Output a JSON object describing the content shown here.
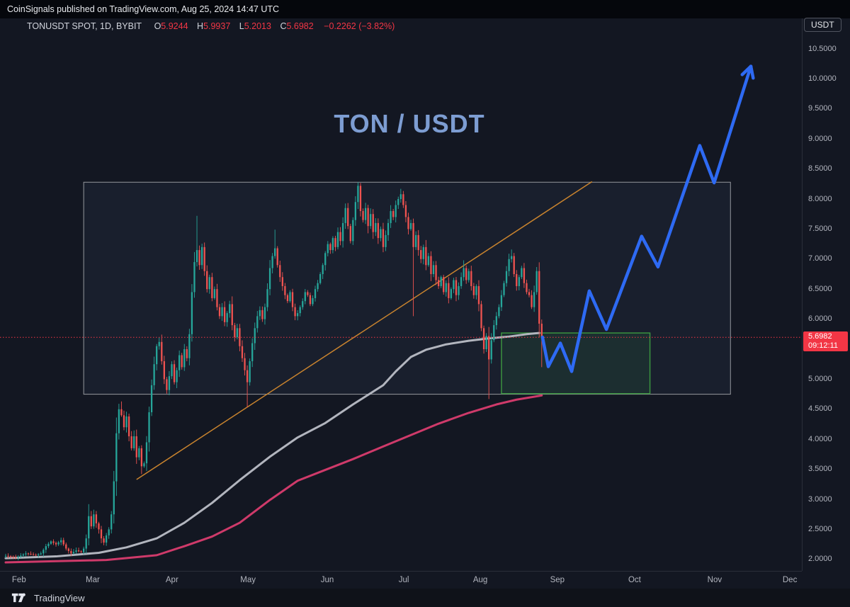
{
  "header": {
    "publisher_note": "CoinSignals published on TradingView.com, Aug 25, 2024 14:47 UTC",
    "currency_button": "USDT"
  },
  "legend": {
    "symbol_title": "TONUSDT SPOT, 1D, BYBIT",
    "ohlc": [
      {
        "k": "O",
        "v": "5.9244"
      },
      {
        "k": "H",
        "v": "5.9937"
      },
      {
        "k": "L",
        "v": "5.2013"
      },
      {
        "k": "C",
        "v": "5.6982"
      }
    ],
    "change_text": "−0.2262 (−3.82%)"
  },
  "watermark_title": "TON / USDT",
  "price_label": {
    "price": "5.6982",
    "countdown": "09:12:11"
  },
  "footer": {
    "brand": "TradingView"
  },
  "colors": {
    "background": "#131722",
    "up_candle": "#26a69a",
    "down_candle": "#ef5350",
    "ma_fast": "#b2b5be",
    "ma_slow": "#cf3a6a",
    "trendline": "#c8832e",
    "projection": "#2e6af3",
    "price_line": "#f23645",
    "white_box_stroke": "rgba(255,255,255,0.55)",
    "white_box_fill": "rgba(135,190,255,0.05)",
    "green_box_stroke": "#3c9a40",
    "green_box_fill": "rgba(60,160,70,0.12)",
    "title_blue": "#7d9dd2",
    "axis_text": "#b2b5be"
  },
  "chart_data": {
    "type": "candlestick",
    "symbol": "TONUSDT",
    "exchange": "BYBIT",
    "interval": "1D",
    "title": "TON / USDT",
    "last": {
      "open": 5.9244,
      "high": 5.9937,
      "low": 5.2013,
      "close": 5.6982,
      "change": -0.2262,
      "change_pct": -3.82
    },
    "y_axis": {
      "min": 1.8,
      "max": 10.5,
      "ticks": [
        10.5,
        10.0,
        9.5,
        9.0,
        8.5,
        8.0,
        7.5,
        7.0,
        6.5,
        6.0,
        5.5,
        5.0,
        4.5,
        4.0,
        3.5,
        3.0,
        2.5,
        2.0
      ],
      "grid": false
    },
    "x_axis": {
      "months": [
        "Feb",
        "Mar",
        "Apr",
        "May",
        "Jun",
        "Jul",
        "Aug",
        "Sep",
        "Oct",
        "Nov",
        "Dec"
      ],
      "month_day_index": [
        5.3,
        34.6,
        66.1,
        96.3,
        127.8,
        158.2,
        188.6,
        219.2,
        249.9,
        281.7,
        311.6
      ]
    },
    "price_line_value": 5.6982,
    "price_path_anchors": [
      [
        0,
        2.06
      ],
      [
        4,
        2.03
      ],
      [
        8,
        2.1
      ],
      [
        12,
        2.07
      ],
      [
        14,
        2.1
      ],
      [
        16,
        2.22
      ],
      [
        18,
        2.3
      ],
      [
        20,
        2.25
      ],
      [
        22,
        2.32
      ],
      [
        24,
        2.18
      ],
      [
        26,
        2.1
      ],
      [
        28,
        2.15
      ],
      [
        30,
        2.12
      ],
      [
        31,
        2.18
      ],
      [
        32,
        2.35
      ],
      [
        33,
        2.72
      ],
      [
        34,
        2.55
      ],
      [
        35,
        2.75
      ],
      [
        36,
        2.6
      ],
      [
        37,
        2.5
      ],
      [
        38,
        2.35
      ],
      [
        39,
        2.28
      ],
      [
        40,
        2.4
      ],
      [
        41,
        2.5
      ],
      [
        42,
        2.75
      ],
      [
        43,
        3.3
      ],
      [
        44,
        4.1
      ],
      [
        45,
        4.5
      ],
      [
        46,
        4.4
      ],
      [
        47,
        4.2
      ],
      [
        48,
        4.38
      ],
      [
        49,
        4.05
      ],
      [
        50,
        3.85
      ],
      [
        51,
        4.05
      ],
      [
        52,
        3.7
      ],
      [
        53,
        3.85
      ],
      [
        54,
        3.55
      ],
      [
        55,
        3.6
      ],
      [
        56,
        3.95
      ],
      [
        57,
        4.45
      ],
      [
        58,
        4.9
      ],
      [
        59,
        5.25
      ],
      [
        60,
        5.55
      ],
      [
        61,
        5.62
      ],
      [
        62,
        5.3
      ],
      [
        63,
        5.0
      ],
      [
        64,
        4.82
      ],
      [
        65,
        5.05
      ],
      [
        66,
        5.25
      ],
      [
        67,
        4.95
      ],
      [
        68,
        5.15
      ],
      [
        69,
        5.4
      ],
      [
        70,
        5.2
      ],
      [
        71,
        5.5
      ],
      [
        72,
        5.35
      ],
      [
        73,
        5.75
      ],
      [
        74,
        6.45
      ],
      [
        75,
        6.95
      ],
      [
        76,
        7.15
      ],
      [
        77,
        6.9
      ],
      [
        78,
        7.2
      ],
      [
        79,
        6.8
      ],
      [
        80,
        6.5
      ],
      [
        81,
        6.7
      ],
      [
        82,
        6.35
      ],
      [
        83,
        6.5
      ],
      [
        84,
        6.2
      ],
      [
        85,
        6.05
      ],
      [
        86,
        6.2
      ],
      [
        87,
        5.95
      ],
      [
        88,
        6.1
      ],
      [
        89,
        6.25
      ],
      [
        90,
        5.9
      ],
      [
        91,
        5.7
      ],
      [
        92,
        5.85
      ],
      [
        93,
        5.55
      ],
      [
        94,
        5.35
      ],
      [
        95,
        5.15
      ],
      [
        96,
        4.95
      ],
      [
        97,
        5.3
      ],
      [
        98,
        5.6
      ],
      [
        99,
        5.85
      ],
      [
        100,
        6.05
      ],
      [
        101,
        6.15
      ],
      [
        102,
        6.0
      ],
      [
        103,
        6.2
      ],
      [
        104,
        6.5
      ],
      [
        105,
        6.85
      ],
      [
        106,
        7.05
      ],
      [
        107,
        7.18
      ],
      [
        108,
        6.9
      ],
      [
        109,
        6.7
      ],
      [
        110,
        6.55
      ],
      [
        111,
        6.4
      ],
      [
        112,
        6.3
      ],
      [
        113,
        6.45
      ],
      [
        114,
        6.2
      ],
      [
        115,
        6.05
      ],
      [
        116,
        6.1
      ],
      [
        117,
        6.2
      ],
      [
        118,
        6.3
      ],
      [
        119,
        6.45
      ],
      [
        120,
        6.4
      ],
      [
        121,
        6.25
      ],
      [
        122,
        6.35
      ],
      [
        123,
        6.5
      ],
      [
        124,
        6.6
      ],
      [
        125,
        6.75
      ],
      [
        126,
        6.9
      ],
      [
        127,
        7.1
      ],
      [
        128,
        7.25
      ],
      [
        129,
        7.15
      ],
      [
        130,
        7.35
      ],
      [
        131,
        7.2
      ],
      [
        132,
        7.45
      ],
      [
        133,
        7.3
      ],
      [
        134,
        7.6
      ],
      [
        135,
        7.85
      ],
      [
        136,
        7.55
      ],
      [
        137,
        7.3
      ],
      [
        138,
        7.65
      ],
      [
        139,
        7.95
      ],
      [
        140,
        8.22
      ],
      [
        141,
        7.8
      ],
      [
        142,
        7.65
      ],
      [
        143,
        7.85
      ],
      [
        144,
        7.55
      ],
      [
        145,
        7.75
      ],
      [
        146,
        7.45
      ],
      [
        147,
        7.6
      ],
      [
        148,
        7.35
      ],
      [
        149,
        7.5
      ],
      [
        150,
        7.2
      ],
      [
        151,
        7.4
      ],
      [
        152,
        7.6
      ],
      [
        153,
        7.8
      ],
      [
        154,
        7.7
      ],
      [
        155,
        7.9
      ],
      [
        156,
        8.0
      ],
      [
        157,
        8.08
      ],
      [
        158,
        7.9
      ],
      [
        159,
        7.7
      ],
      [
        160,
        7.5
      ],
      [
        161,
        7.6
      ],
      [
        162,
        7.2
      ],
      [
        163,
        7.4
      ],
      [
        164,
        7.15
      ],
      [
        165,
        7.0
      ],
      [
        166,
        7.2
      ],
      [
        167,
        6.9
      ],
      [
        168,
        7.05
      ],
      [
        169,
        6.75
      ],
      [
        170,
        6.9
      ],
      [
        171,
        6.65
      ],
      [
        172,
        6.55
      ],
      [
        173,
        6.7
      ],
      [
        174,
        6.45
      ],
      [
        175,
        6.6
      ],
      [
        176,
        6.35
      ],
      [
        177,
        6.5
      ],
      [
        178,
        6.65
      ],
      [
        179,
        6.4
      ],
      [
        180,
        6.55
      ],
      [
        181,
        6.7
      ],
      [
        182,
        6.85
      ],
      [
        183,
        6.65
      ],
      [
        184,
        6.8
      ],
      [
        185,
        6.55
      ],
      [
        186,
        6.4
      ],
      [
        187,
        6.55
      ],
      [
        188,
        6.25
      ],
      [
        189,
        5.85
      ],
      [
        190,
        5.5
      ],
      [
        191,
        5.72
      ],
      [
        192,
        5.33
      ],
      [
        193,
        5.65
      ],
      [
        194,
        5.9
      ],
      [
        195,
        6.05
      ],
      [
        196,
        6.2
      ],
      [
        197,
        6.4
      ],
      [
        198,
        6.6
      ],
      [
        199,
        6.8
      ],
      [
        200,
        7.0
      ],
      [
        201,
        7.05
      ],
      [
        202,
        6.75
      ],
      [
        203,
        6.55
      ],
      [
        204,
        6.7
      ],
      [
        205,
        6.85
      ],
      [
        206,
        6.6
      ],
      [
        207,
        6.45
      ],
      [
        208,
        6.4
      ],
      [
        209,
        6.2
      ],
      [
        210,
        6.45
      ],
      [
        211,
        6.8
      ],
      [
        212,
        5.9244
      ],
      [
        213,
        5.6982
      ]
    ],
    "special_wicks": {
      "33": {
        "h": 2.92
      },
      "46": {
        "h": 4.63
      },
      "54": {
        "l": 3.42
      },
      "61": {
        "h": 5.7
      },
      "64": {
        "l": 4.76
      },
      "76": {
        "h": 7.72
      },
      "96": {
        "l": 4.53
      },
      "107": {
        "h": 7.49
      },
      "116": {
        "l": 5.98
      },
      "140": {
        "h": 8.28
      },
      "157": {
        "h": 8.17
      },
      "162": {
        "l": 6.05
      },
      "182": {
        "h": 6.98
      },
      "192": {
        "l": 4.67
      },
      "201": {
        "h": 7.16
      },
      "213": {
        "h": 5.9937,
        "l": 5.2013
      }
    },
    "overlays": {
      "ma_fast_points": [
        [
          0,
          2.02
        ],
        [
          20,
          2.05
        ],
        [
          37,
          2.11
        ],
        [
          48,
          2.2
        ],
        [
          60,
          2.35
        ],
        [
          71,
          2.61
        ],
        [
          82,
          2.94
        ],
        [
          93,
          3.32
        ],
        [
          105,
          3.71
        ],
        [
          116,
          4.03
        ],
        [
          127,
          4.27
        ],
        [
          138,
          4.58
        ],
        [
          150,
          4.9
        ],
        [
          155,
          5.13
        ],
        [
          161,
          5.37
        ],
        [
          167,
          5.49
        ],
        [
          175,
          5.58
        ],
        [
          184,
          5.64
        ],
        [
          192,
          5.68
        ],
        [
          200,
          5.71
        ],
        [
          207,
          5.75
        ],
        [
          212,
          5.77
        ]
      ],
      "ma_slow_points": [
        [
          0,
          1.95
        ],
        [
          40,
          1.99
        ],
        [
          60,
          2.07
        ],
        [
          71,
          2.22
        ],
        [
          82,
          2.38
        ],
        [
          93,
          2.61
        ],
        [
          105,
          2.99
        ],
        [
          116,
          3.31
        ],
        [
          127,
          3.49
        ],
        [
          138,
          3.67
        ],
        [
          150,
          3.88
        ],
        [
          161,
          4.07
        ],
        [
          172,
          4.26
        ],
        [
          184,
          4.44
        ],
        [
          195,
          4.58
        ],
        [
          203,
          4.66
        ],
        [
          213,
          4.73
        ]
      ],
      "trendline": {
        "from": [
          52,
          3.33
        ],
        "to": [
          233,
          8.29
        ]
      },
      "white_box": {
        "from": [
          31,
          8.28
        ],
        "to": [
          288,
          4.75
        ]
      },
      "green_box": {
        "from": [
          197,
          5.77
        ],
        "to": [
          256,
          4.76
        ]
      },
      "projection_path": [
        [
          213.3,
          5.7
        ],
        [
          215.6,
          5.21
        ],
        [
          220.4,
          5.6
        ],
        [
          224.9,
          5.13
        ],
        [
          231.9,
          6.47
        ],
        [
          238.7,
          5.83
        ],
        [
          252.7,
          7.38
        ],
        [
          259.2,
          6.87
        ],
        [
          275.8,
          8.89
        ],
        [
          281.5,
          8.27
        ],
        [
          296.1,
          10.21
        ]
      ]
    }
  }
}
